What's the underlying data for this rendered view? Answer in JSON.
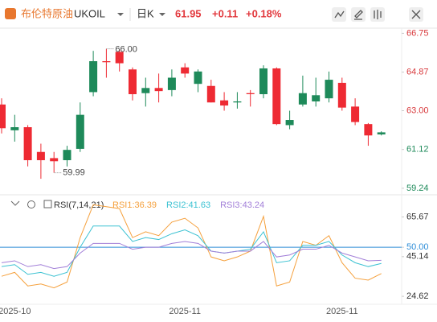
{
  "header": {
    "name": "布伦特原油",
    "symbol": "UKOIL",
    "period": "日K",
    "price": "61.95",
    "change": "+0.11",
    "change_pct": "+0.18%"
  },
  "chart_data": [
    {
      "type": "candlestick",
      "up_color": "#1e8a5a",
      "down_color": "#ee2a33",
      "open": [
        63.3,
        62.05,
        62.2,
        61.0,
        60.7,
        60.6,
        61.15,
        63.9,
        65.4,
        65.85,
        65.0,
        63.85,
        64.1,
        64.0,
        65.1,
        64.3,
        64.2,
        63.5,
        63.4,
        63.85,
        63.8,
        65.05,
        62.3,
        63.3,
        63.45,
        63.6,
        64.35,
        63.2,
        62.35,
        61.85
      ],
      "high": [
        63.6,
        62.8,
        62.3,
        61.4,
        61.0,
        61.3,
        63.4,
        65.9,
        66.0,
        65.95,
        65.1,
        64.6,
        64.8,
        65.0,
        65.3,
        65.0,
        64.5,
        63.9,
        63.9,
        64.0,
        65.2,
        65.1,
        63.0,
        64.7,
        64.6,
        64.9,
        64.6,
        63.6,
        62.4,
        62.0
      ],
      "low": [
        61.9,
        61.5,
        60.3,
        59.7,
        59.99,
        60.3,
        61.0,
        63.7,
        64.6,
        64.9,
        63.5,
        63.2,
        63.4,
        63.7,
        64.6,
        63.9,
        63.4,
        63.0,
        63.1,
        63.2,
        63.6,
        62.3,
        62.1,
        63.2,
        63.2,
        63.4,
        63.0,
        62.3,
        61.3,
        61.8
      ],
      "close": [
        62.15,
        62.2,
        60.6,
        60.6,
        60.55,
        61.1,
        62.8,
        65.4,
        65.35,
        65.3,
        63.8,
        64.1,
        63.95,
        64.6,
        64.8,
        64.9,
        63.4,
        63.25,
        63.45,
        63.8,
        65.05,
        62.35,
        62.55,
        63.85,
        63.75,
        64.5,
        63.15,
        62.45,
        61.8,
        61.95
      ],
      "ylim": [
        59.0,
        67.0
      ],
      "yticks": [
        66.75,
        64.87,
        {
          "value": 63,
          "label": "63.00"
        },
        61.12,
        59.24
      ],
      "annotations": [
        {
          "index": 8,
          "value": 66,
          "label": "66.00"
        },
        {
          "index": 4,
          "value": 59.99,
          "label": "59.99"
        }
      ]
    },
    {
      "type": "line",
      "title": "RSI(7,14,21)",
      "categories": [
        null,
        "2025-10",
        null,
        null,
        null,
        null,
        null,
        null,
        null,
        null,
        null,
        null,
        null,
        null,
        "2025-11",
        null,
        null,
        null,
        null,
        null,
        null,
        null,
        null,
        null,
        null,
        null,
        "2025-11",
        null,
        null,
        null
      ],
      "series": [
        {
          "name": "RSI1:36.39",
          "color": "#f5a03c",
          "values": [
            35,
            37,
            30,
            31,
            29,
            32,
            55,
            72,
            71,
            70,
            55,
            58,
            56,
            63,
            65,
            60,
            45,
            43,
            45,
            48,
            66,
            30,
            32,
            53,
            51,
            56,
            42,
            34,
            33,
            36.39
          ]
        },
        {
          "name": "RSI2:41.63",
          "color": "#3cc2d2",
          "values": [
            40,
            41,
            36,
            37,
            35,
            37,
            50,
            61,
            61,
            61,
            53,
            55,
            54,
            57,
            59,
            56,
            48,
            47,
            48,
            49,
            58,
            42,
            43,
            51,
            51,
            53,
            46,
            42,
            40,
            41.63
          ]
        },
        {
          "name": "RSI3:43.24",
          "color": "#a27fd8",
          "values": [
            42,
            43,
            40,
            41,
            39,
            40,
            47,
            52,
            52,
            52,
            49,
            50,
            50,
            52,
            53,
            52,
            48,
            47,
            48,
            48,
            53,
            45,
            46,
            49,
            49,
            51,
            47,
            45,
            43,
            43.24
          ]
        }
      ],
      "ylim": [
        20.5,
        73.8
      ],
      "yticks": [
        65.67,
        {
          "value": 50,
          "label": "50.00"
        },
        45.14,
        24.62
      ],
      "ref_line": {
        "value": 50,
        "color": "#2f8ed8"
      }
    }
  ]
}
